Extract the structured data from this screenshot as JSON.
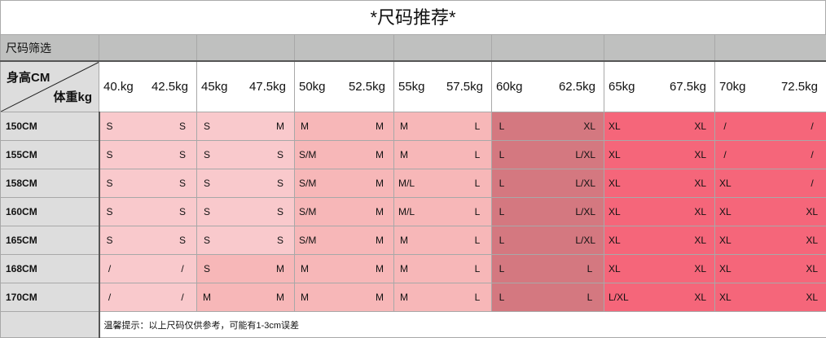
{
  "title": "*尺码推荐*",
  "filter_label": "尺码筛选",
  "header": {
    "height_label": "身高CM",
    "weight_label": "体重kg",
    "weights": [
      [
        "40.kg",
        "42.5kg"
      ],
      [
        "45kg",
        "47.5kg"
      ],
      [
        "50kg",
        "52.5kg"
      ],
      [
        "55kg",
        "57.5kg"
      ],
      [
        "60kg",
        "62.5kg"
      ],
      [
        "65kg",
        "67.5kg"
      ],
      [
        "70kg",
        "72.5kg"
      ]
    ]
  },
  "colors": {
    "c1": "#f9c9cc",
    "c2": "#f7b7b8",
    "c3": "#d47880",
    "c4": "#f5667a"
  },
  "rows": [
    {
      "height": "150CM",
      "sizes": [
        [
          "S",
          "S"
        ],
        [
          "S",
          "M"
        ],
        [
          "M",
          "M"
        ],
        [
          "M",
          "L"
        ],
        [
          "L",
          "XL"
        ],
        [
          "XL",
          "XL"
        ],
        [
          "/",
          "/"
        ]
      ]
    },
    {
      "height": "155CM",
      "sizes": [
        [
          "S",
          "S"
        ],
        [
          "S",
          "S"
        ],
        [
          "S/M",
          "M"
        ],
        [
          "M",
          "L"
        ],
        [
          "L",
          "L/XL"
        ],
        [
          "XL",
          "XL"
        ],
        [
          "/",
          "/"
        ]
      ]
    },
    {
      "height": "158CM",
      "sizes": [
        [
          "S",
          "S"
        ],
        [
          "S",
          "S"
        ],
        [
          "S/M",
          "M"
        ],
        [
          "M/L",
          "L"
        ],
        [
          "L",
          "L/XL"
        ],
        [
          "XL",
          "XL"
        ],
        [
          "XL",
          "/"
        ]
      ]
    },
    {
      "height": "160CM",
      "sizes": [
        [
          "S",
          "S"
        ],
        [
          "S",
          "S"
        ],
        [
          "S/M",
          "M"
        ],
        [
          "M/L",
          "L"
        ],
        [
          "L",
          "L/XL"
        ],
        [
          "XL",
          "XL"
        ],
        [
          "XL",
          "XL"
        ]
      ]
    },
    {
      "height": "165CM",
      "sizes": [
        [
          "S",
          "S"
        ],
        [
          "S",
          "S"
        ],
        [
          "S/M",
          "M"
        ],
        [
          "M",
          "L"
        ],
        [
          "L",
          "L/XL"
        ],
        [
          "XL",
          "XL"
        ],
        [
          "XL",
          "XL"
        ]
      ]
    },
    {
      "height": "168CM",
      "sizes": [
        [
          "/",
          "/"
        ],
        [
          "S",
          "M"
        ],
        [
          "M",
          "M"
        ],
        [
          "M",
          "L"
        ],
        [
          "L",
          "L"
        ],
        [
          "XL",
          "XL"
        ],
        [
          "XL",
          "XL"
        ]
      ]
    },
    {
      "height": "170CM",
      "sizes": [
        [
          "/",
          "/"
        ],
        [
          "M",
          "M"
        ],
        [
          "M",
          "M"
        ],
        [
          "M",
          "L"
        ],
        [
          "L",
          "L"
        ],
        [
          "L/XL",
          "XL"
        ],
        [
          "XL",
          "XL"
        ]
      ]
    }
  ],
  "note": "温馨提示：以上尺码仅供参考，可能有1-3cm误差"
}
